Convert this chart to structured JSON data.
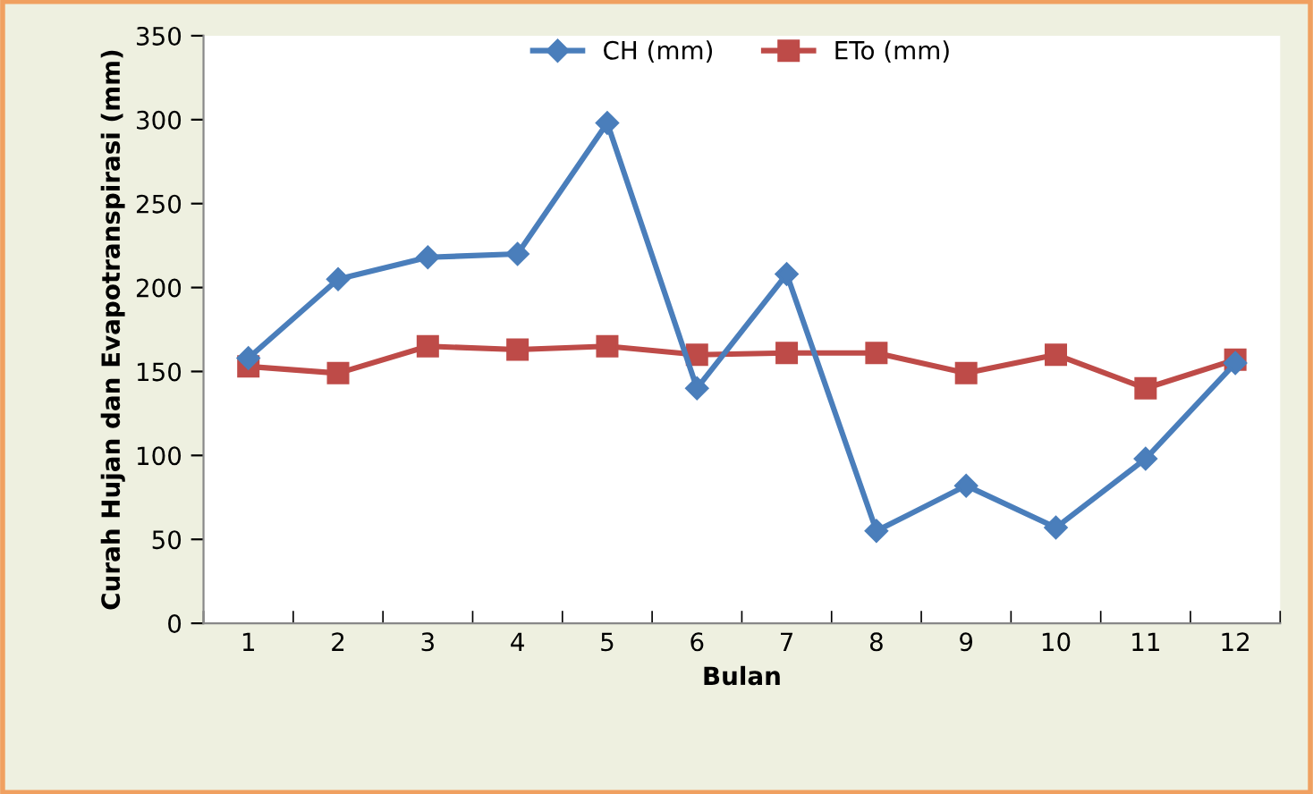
{
  "chart_data": {
    "type": "line",
    "xlabel": "Bulan",
    "ylabel": "Curah Hujan dan Evapotranspirasi (mm)",
    "categories": [
      "1",
      "2",
      "3",
      "4",
      "5",
      "6",
      "7",
      "8",
      "9",
      "10",
      "11",
      "12"
    ],
    "series": [
      {
        "name": "CH (mm)",
        "color": "#4a7ebb",
        "marker": "diamond",
        "values": [
          158,
          205,
          218,
          220,
          298,
          140,
          208,
          55,
          82,
          57,
          98,
          155
        ]
      },
      {
        "name": "ETo (mm)",
        "color": "#be4b48",
        "marker": "square",
        "values": [
          153,
          149,
          165,
          163,
          165,
          160,
          161,
          161,
          149,
          160,
          140,
          157
        ]
      }
    ],
    "ylim": [
      0,
      350
    ],
    "yticks": [
      0,
      50,
      100,
      150,
      200,
      250,
      300,
      350
    ],
    "grid": false,
    "legend": "top",
    "line_style": "solid"
  }
}
